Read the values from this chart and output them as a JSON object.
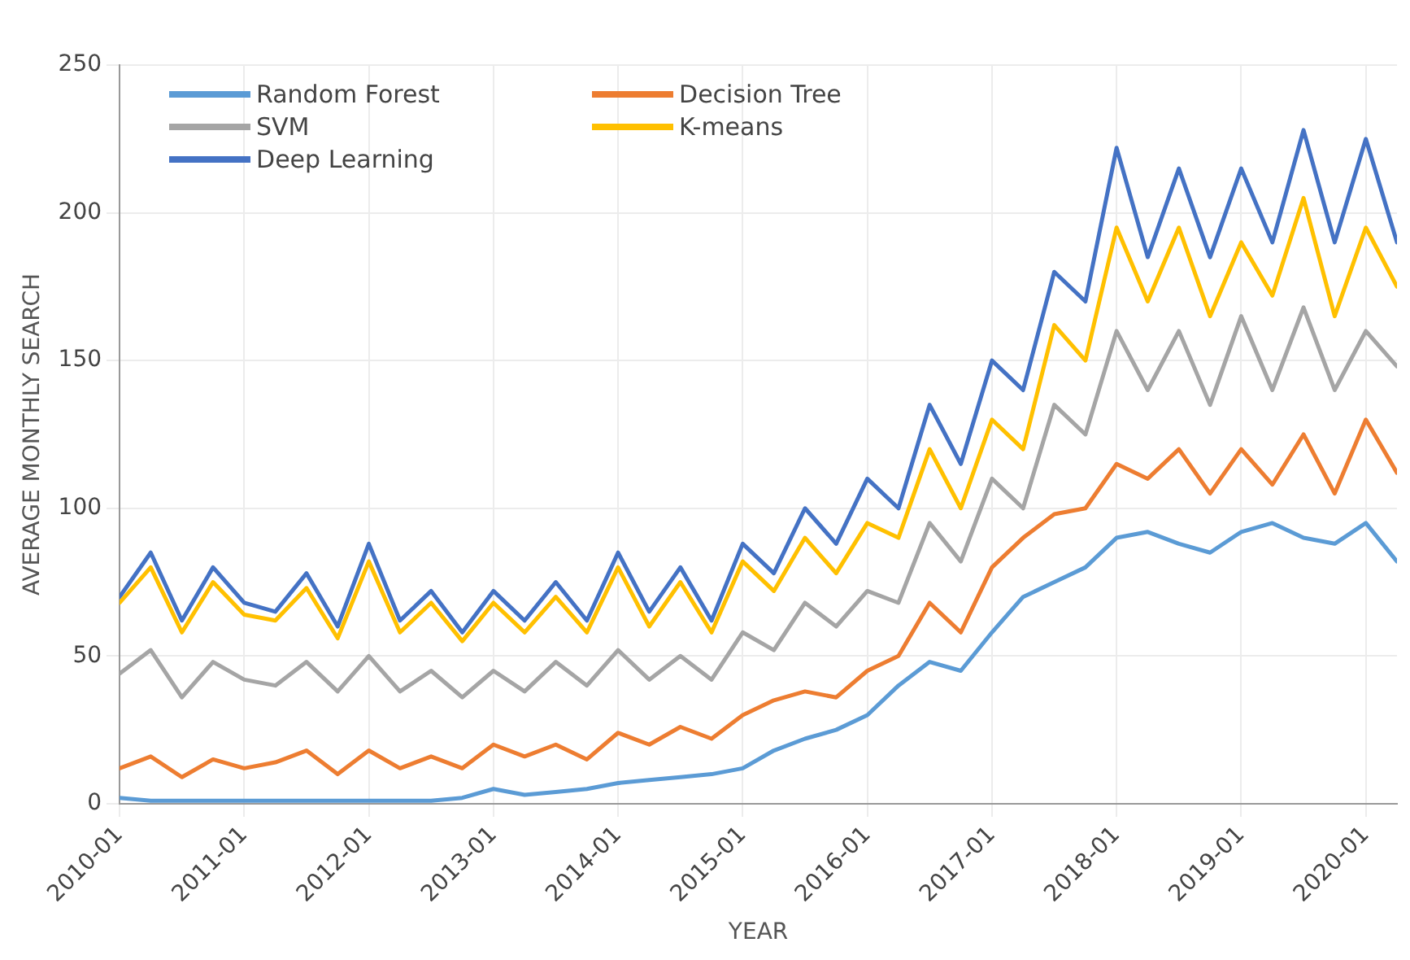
{
  "chart_data": {
    "type": "line",
    "xlabel": "YEAR",
    "ylabel": "AVERAGE MONTHLY SEARCH",
    "x": [
      "2010-01",
      "2010-04",
      "2010-07",
      "2010-10",
      "2011-01",
      "2011-04",
      "2011-07",
      "2011-10",
      "2012-01",
      "2012-04",
      "2012-07",
      "2012-10",
      "2013-01",
      "2013-04",
      "2013-07",
      "2013-10",
      "2014-01",
      "2014-04",
      "2014-07",
      "2014-10",
      "2015-01",
      "2015-04",
      "2015-07",
      "2015-10",
      "2016-01",
      "2016-04",
      "2016-07",
      "2016-10",
      "2017-01",
      "2017-04",
      "2017-07",
      "2017-10",
      "2018-01",
      "2018-04",
      "2018-07",
      "2018-10",
      "2019-01",
      "2019-04",
      "2019-07",
      "2019-10",
      "2020-01",
      "2020-04"
    ],
    "series": [
      {
        "name": "Random Forest",
        "color": "#5b9bd5",
        "values": [
          2,
          1,
          1,
          1,
          1,
          1,
          1,
          1,
          1,
          1,
          1,
          2,
          5,
          3,
          4,
          5,
          7,
          8,
          9,
          10,
          12,
          18,
          22,
          25,
          30,
          40,
          48,
          45,
          58,
          70,
          75,
          80,
          90,
          92,
          88,
          85,
          92,
          95,
          90,
          88,
          95,
          82
        ]
      },
      {
        "name": "Decision Tree",
        "color": "#ed7d31",
        "values": [
          12,
          16,
          9,
          15,
          12,
          14,
          18,
          10,
          18,
          12,
          16,
          12,
          20,
          16,
          20,
          15,
          24,
          20,
          26,
          22,
          30,
          35,
          38,
          36,
          45,
          50,
          68,
          58,
          80,
          90,
          98,
          100,
          115,
          110,
          120,
          105,
          120,
          108,
          125,
          105,
          130,
          112
        ]
      },
      {
        "name": "SVM",
        "color": "#a5a5a5",
        "values": [
          44,
          52,
          36,
          48,
          42,
          40,
          48,
          38,
          50,
          38,
          45,
          36,
          45,
          38,
          48,
          40,
          52,
          42,
          50,
          42,
          58,
          52,
          68,
          60,
          72,
          68,
          95,
          82,
          110,
          100,
          135,
          125,
          160,
          140,
          160,
          135,
          165,
          140,
          168,
          140,
          160,
          148
        ]
      },
      {
        "name": "K-means",
        "color": "#ffc000",
        "values": [
          68,
          80,
          58,
          75,
          64,
          62,
          73,
          56,
          82,
          58,
          68,
          55,
          68,
          58,
          70,
          58,
          80,
          60,
          75,
          58,
          82,
          72,
          90,
          78,
          95,
          90,
          120,
          100,
          130,
          120,
          162,
          150,
          195,
          170,
          195,
          165,
          190,
          172,
          205,
          165,
          195,
          175
        ]
      },
      {
        "name": "Deep Learning",
        "color": "#4472c4",
        "values": [
          70,
          85,
          62,
          80,
          68,
          65,
          78,
          60,
          88,
          62,
          72,
          58,
          72,
          62,
          75,
          62,
          85,
          65,
          80,
          62,
          88,
          78,
          100,
          88,
          110,
          100,
          135,
          115,
          150,
          140,
          180,
          170,
          222,
          185,
          215,
          185,
          215,
          190,
          228,
          190,
          225,
          190
        ]
      }
    ],
    "xlim": [
      "2010-01",
      "2020-04"
    ],
    "xticks": [
      "2010-01",
      "2011-01",
      "2012-01",
      "2013-01",
      "2014-01",
      "2015-01",
      "2016-01",
      "2017-01",
      "2018-01",
      "2019-01",
      "2020-01"
    ],
    "ylim": [
      0,
      250
    ],
    "yticks": [
      0,
      50,
      100,
      150,
      200,
      250
    ],
    "grid": true,
    "legend": "top left",
    "marker": "none",
    "line_style": "solid"
  }
}
